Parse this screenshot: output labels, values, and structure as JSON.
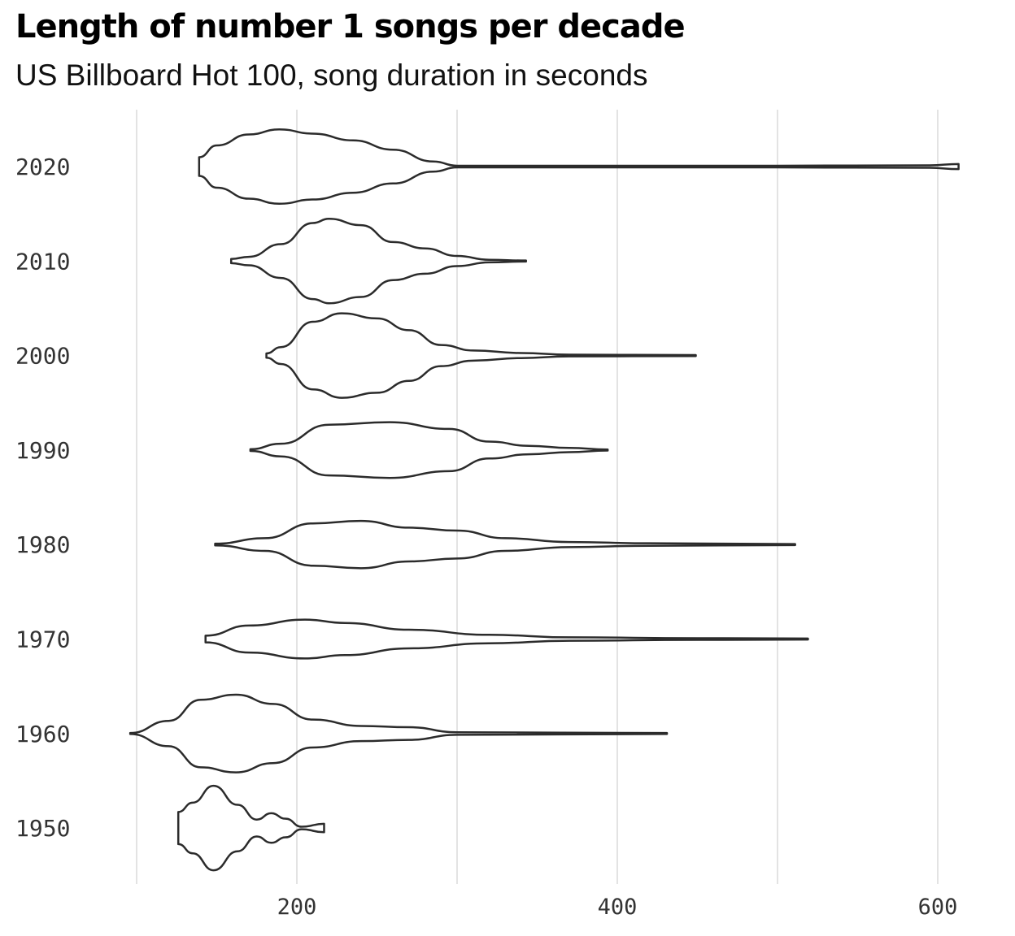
{
  "title": "Length of number 1 songs per decade",
  "subtitle": "US Billboard Hot 100, song duration in seconds",
  "chart_data": {
    "type": "violin",
    "title": "Length of number 1 songs per decade",
    "subtitle": "US Billboard Hot 100, song duration in seconds",
    "xlabel": "",
    "ylabel": "",
    "xlim": [
      80,
      620
    ],
    "x_ticks": [
      200,
      400,
      600
    ],
    "x_gridlines": [
      100,
      200,
      300,
      400,
      500,
      600
    ],
    "categories": [
      "2020",
      "2010",
      "2000",
      "1990",
      "1980",
      "1970",
      "1960",
      "1950"
    ],
    "grid": true,
    "series": [
      {
        "category": "2020",
        "min": 139,
        "max": 613,
        "density": [
          [
            139,
            0.22
          ],
          [
            150,
            0.5
          ],
          [
            170,
            0.76
          ],
          [
            189,
            0.88
          ],
          [
            210,
            0.78
          ],
          [
            235,
            0.62
          ],
          [
            260,
            0.4
          ],
          [
            285,
            0.12
          ],
          [
            300,
            0.02
          ],
          [
            400,
            0.02
          ],
          [
            500,
            0.02
          ],
          [
            595,
            0.03
          ],
          [
            613,
            0.06
          ]
        ]
      },
      {
        "category": "2010",
        "min": 159,
        "max": 343,
        "density": [
          [
            159,
            0.05
          ],
          [
            170,
            0.1
          ],
          [
            190,
            0.4
          ],
          [
            210,
            0.9
          ],
          [
            220,
            1.0
          ],
          [
            240,
            0.85
          ],
          [
            260,
            0.45
          ],
          [
            280,
            0.3
          ],
          [
            300,
            0.12
          ],
          [
            320,
            0.03
          ],
          [
            343,
            0.0
          ]
        ]
      },
      {
        "category": "2000",
        "min": 181,
        "max": 449,
        "density": [
          [
            181,
            0.05
          ],
          [
            190,
            0.2
          ],
          [
            210,
            0.8
          ],
          [
            228,
            1.0
          ],
          [
            250,
            0.88
          ],
          [
            270,
            0.6
          ],
          [
            290,
            0.25
          ],
          [
            310,
            0.12
          ],
          [
            340,
            0.06
          ],
          [
            370,
            0.02
          ],
          [
            449,
            0.01
          ]
        ]
      },
      {
        "category": "1990",
        "min": 171,
        "max": 394,
        "density": [
          [
            171,
            0.02
          ],
          [
            190,
            0.15
          ],
          [
            220,
            0.6
          ],
          [
            258,
            0.66
          ],
          [
            295,
            0.5
          ],
          [
            320,
            0.2
          ],
          [
            345,
            0.1
          ],
          [
            370,
            0.05
          ],
          [
            394,
            0.01
          ]
        ]
      },
      {
        "category": "1980",
        "min": 149,
        "max": 511,
        "density": [
          [
            149,
            0.02
          ],
          [
            180,
            0.15
          ],
          [
            210,
            0.5
          ],
          [
            240,
            0.56
          ],
          [
            270,
            0.4
          ],
          [
            300,
            0.33
          ],
          [
            330,
            0.15
          ],
          [
            370,
            0.06
          ],
          [
            420,
            0.03
          ],
          [
            511,
            0.01
          ]
        ]
      },
      {
        "category": "1970",
        "min": 143,
        "max": 519,
        "density": [
          [
            143,
            0.08
          ],
          [
            170,
            0.32
          ],
          [
            205,
            0.46
          ],
          [
            230,
            0.38
          ],
          [
            270,
            0.22
          ],
          [
            320,
            0.1
          ],
          [
            370,
            0.04
          ],
          [
            450,
            0.02
          ],
          [
            519,
            0.01
          ]
        ]
      },
      {
        "category": "1960",
        "min": 96,
        "max": 431,
        "density": [
          [
            96,
            0.0
          ],
          [
            120,
            0.3
          ],
          [
            140,
            0.8
          ],
          [
            162,
            0.92
          ],
          [
            185,
            0.7
          ],
          [
            210,
            0.33
          ],
          [
            240,
            0.18
          ],
          [
            270,
            0.15
          ],
          [
            300,
            0.03
          ],
          [
            431,
            0.0
          ]
        ]
      },
      {
        "category": "1950",
        "min": 126,
        "max": 217,
        "density": [
          [
            126,
            0.38
          ],
          [
            135,
            0.6
          ],
          [
            148,
            1.0
          ],
          [
            163,
            0.55
          ],
          [
            175,
            0.2
          ],
          [
            184,
            0.35
          ],
          [
            193,
            0.22
          ],
          [
            203,
            0.03
          ],
          [
            217,
            0.1
          ]
        ]
      }
    ]
  }
}
